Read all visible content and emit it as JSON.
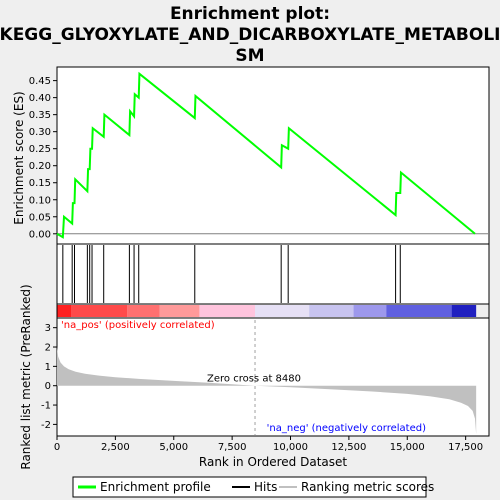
{
  "title_line1": "Enrichment plot:",
  "title_line2": "KEGG_GLYOXYLATE_AND_DICARBOXYLATE_METABOLI",
  "title_line3": "SM",
  "colors": {
    "es_line": "#00ff00",
    "hit": "#000000",
    "metric": "#c0c0c0",
    "pos_label": "#ff0000",
    "neg_label": "#0000ff",
    "zero_cross": "#a0a0a0"
  },
  "chart_data": [
    {
      "type": "line",
      "ylabel": "Enrichment score (ES)",
      "xlim": [
        0,
        18500
      ],
      "ylim": [
        -0.03,
        0.49
      ],
      "yticks": [
        0.0,
        0.05,
        0.1,
        0.15,
        0.2,
        0.25,
        0.3,
        0.35,
        0.4,
        0.45
      ],
      "ytick_labels": [
        "0.00",
        "0.05",
        "0.10",
        "0.15",
        "0.20",
        "0.25",
        "0.30",
        "0.35",
        "0.40",
        "0.45"
      ],
      "series": [
        {
          "x": [
            0,
            250,
            300,
            650,
            680,
            750,
            780,
            1300,
            1330,
            1400,
            1430,
            1500,
            1530,
            2000,
            2030,
            3100,
            3130,
            3300,
            3330,
            3500,
            3530,
            5900,
            5930,
            9600,
            9630,
            9900,
            9930,
            14500,
            14530,
            14700,
            14730,
            17900
          ],
          "y": [
            0.0,
            -0.01,
            0.05,
            0.03,
            0.09,
            0.09,
            0.16,
            0.125,
            0.19,
            0.19,
            0.25,
            0.25,
            0.31,
            0.285,
            0.35,
            0.29,
            0.36,
            0.345,
            0.41,
            0.4,
            0.47,
            0.34,
            0.405,
            0.195,
            0.26,
            0.25,
            0.31,
            0.055,
            0.12,
            0.12,
            0.18,
            0.0
          ]
        }
      ]
    },
    {
      "type": "hits",
      "hit_positions": [
        250,
        650,
        750,
        1300,
        1400,
        1500,
        2000,
        3100,
        3300,
        3500,
        5900,
        9600,
        9900,
        14500,
        14700
      ]
    },
    {
      "type": "area",
      "xlabel": "Rank in Ordered Dataset",
      "ylabel": "Ranked list metric (PreRanked)",
      "xlim": [
        0,
        18500
      ],
      "ylim": [
        -2.6,
        3.5
      ],
      "xticks": [
        0,
        2500,
        5000,
        7500,
        10000,
        12500,
        15000,
        17500
      ],
      "xtick_labels": [
        "0",
        "2,500",
        "5,000",
        "7,500",
        "10,000",
        "12,500",
        "15,000",
        "17,500"
      ],
      "yticks": [
        -2,
        -1,
        0,
        1,
        2,
        3
      ],
      "ytick_labels": [
        "-2",
        "-1",
        "0",
        "1",
        "2",
        "3"
      ],
      "x": [
        0,
        50,
        150,
        300,
        500,
        800,
        1200,
        1800,
        2500,
        3500,
        5000,
        6500,
        8480,
        10000,
        12000,
        13500,
        15000,
        16000,
        16800,
        17300,
        17600,
        17800,
        17900,
        17950
      ],
      "y": [
        2.0,
        1.5,
        1.2,
        1.0,
        0.85,
        0.72,
        0.62,
        0.52,
        0.44,
        0.35,
        0.25,
        0.15,
        0.0,
        -0.08,
        -0.2,
        -0.3,
        -0.42,
        -0.55,
        -0.7,
        -0.88,
        -1.05,
        -1.3,
        -1.7,
        -2.5
      ],
      "zero_cross_text": "Zero cross at 8480",
      "zero_cross_at": 8480,
      "pos_label": "'na_pos' (positively correlated)",
      "neg_label": "'na_neg' (negatively correlated)"
    }
  ],
  "legend": {
    "items": [
      {
        "label": "Enrichment profile",
        "color": "#00ff00"
      },
      {
        "label": "Hits",
        "color": "#000000"
      },
      {
        "label": "Ranking metric scores",
        "color": "#c0c0c0"
      }
    ]
  }
}
